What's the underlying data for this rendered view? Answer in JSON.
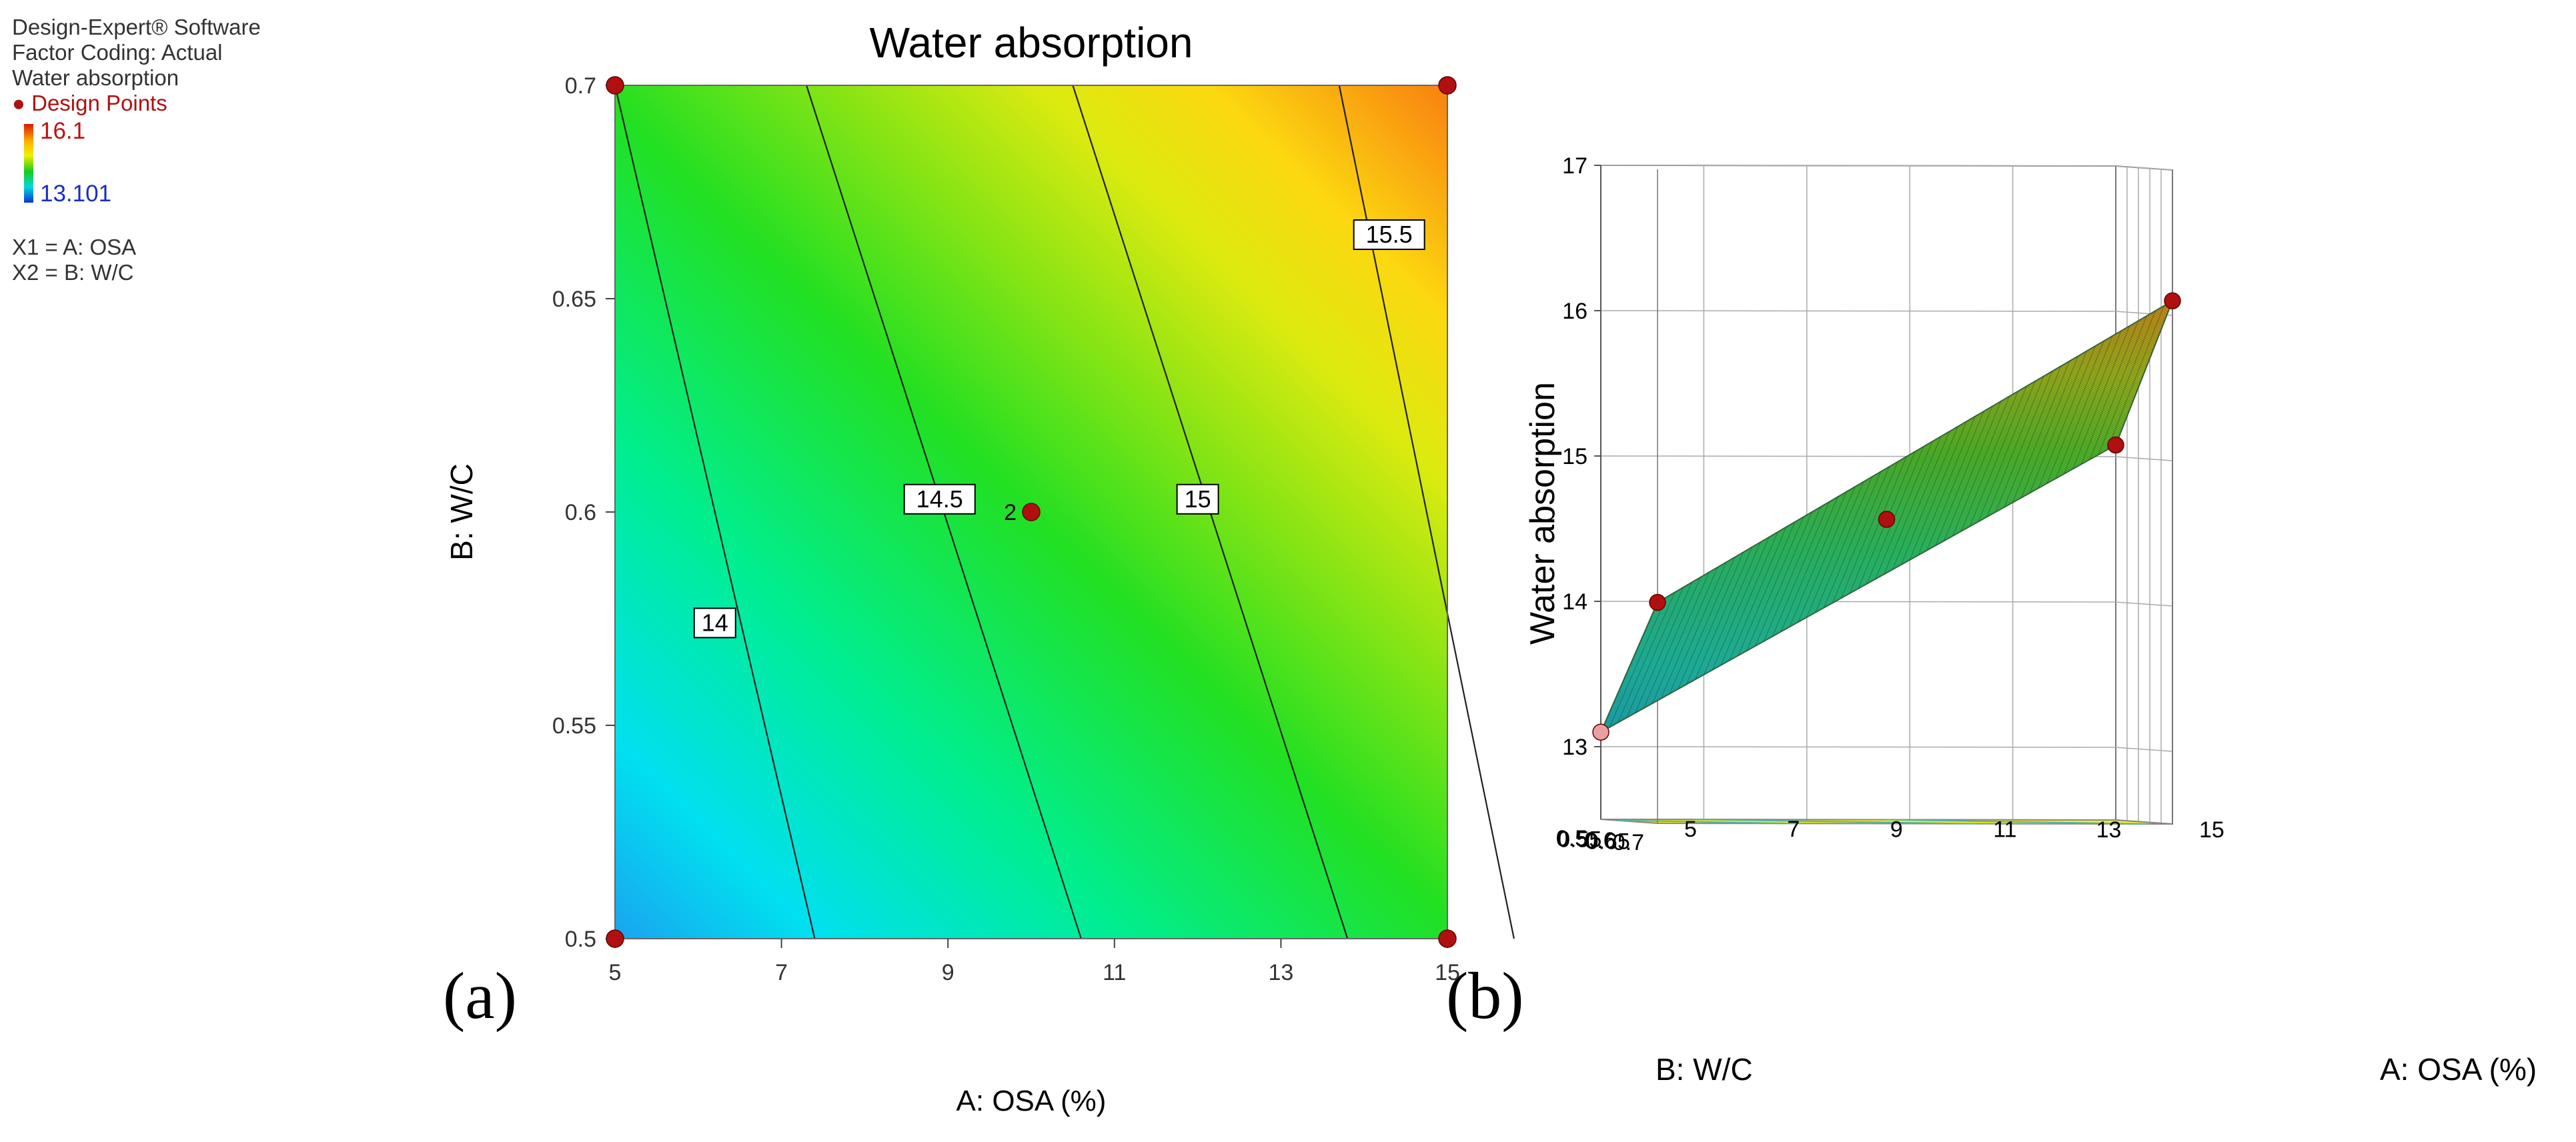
{
  "info": {
    "software": "Design-Expert® Software",
    "coding": "Factor Coding: Actual",
    "response": "Water absorption",
    "design_points_label": "Design Points",
    "legend_high": "16.1",
    "legend_low": "13.101",
    "x1": "X1 = A: OSA",
    "x2": "X2 = B: W/C"
  },
  "labels": {
    "a": "(a)",
    "b": "(b)"
  },
  "chart_data": [
    {
      "type": "contour",
      "title": "Water absorption",
      "xlabel": "A: OSA (%)",
      "ylabel": "B: W/C",
      "xlim": [
        5,
        15
      ],
      "ylim": [
        0.5,
        0.7
      ],
      "xticks": [
        "5",
        "7",
        "9",
        "11",
        "13",
        "15"
      ],
      "yticks": [
        "0.5",
        "0.55",
        "0.6",
        "0.65",
        "0.7"
      ],
      "contours": [
        {
          "level": "14",
          "x_bottom": 7.4,
          "x_top": 5.0,
          "label_x": 6.2,
          "label_y": 0.574
        },
        {
          "level": "14.5",
          "x_bottom": 10.6,
          "x_top": 7.3,
          "label_x": 8.9,
          "label_y": 0.603
        },
        {
          "level": "15",
          "x_bottom": 13.8,
          "x_top": 10.5,
          "label_x": 12.0,
          "label_y": 0.603
        },
        {
          "level": "15.5",
          "x_bottom": 15.8,
          "x_top": 13.7,
          "label_x": 14.3,
          "label_y": 0.665
        }
      ],
      "design_points": [
        {
          "x": 5,
          "y": 0.7,
          "label": ""
        },
        {
          "x": 15,
          "y": 0.7,
          "label": ""
        },
        {
          "x": 5,
          "y": 0.5,
          "label": ""
        },
        {
          "x": 15,
          "y": 0.5,
          "label": ""
        },
        {
          "x": 10,
          "y": 0.6,
          "label": "2"
        }
      ]
    },
    {
      "type": "surface3d",
      "zlabel": "Water absorption",
      "xlabel": "A: OSA (%)",
      "ylabel": "B: W/C",
      "xticks": [
        "5",
        "7",
        "9",
        "11",
        "13",
        "15"
      ],
      "yticks": [
        "0.5",
        "0.55",
        "0.6",
        "0.65",
        "0.7"
      ],
      "zticks": [
        "13",
        "14",
        "15",
        "16",
        "17"
      ],
      "zlim": [
        12.5,
        17
      ],
      "corners": [
        {
          "x": 5,
          "y": 0.5,
          "z": 13.1
        },
        {
          "x": 15,
          "y": 0.5,
          "z": 15.08
        },
        {
          "x": 5,
          "y": 0.7,
          "z": 14.02
        },
        {
          "x": 15,
          "y": 0.7,
          "z": 16.1
        }
      ],
      "center_point": {
        "x": 10,
        "y": 0.6,
        "z": 14.58
      }
    }
  ]
}
